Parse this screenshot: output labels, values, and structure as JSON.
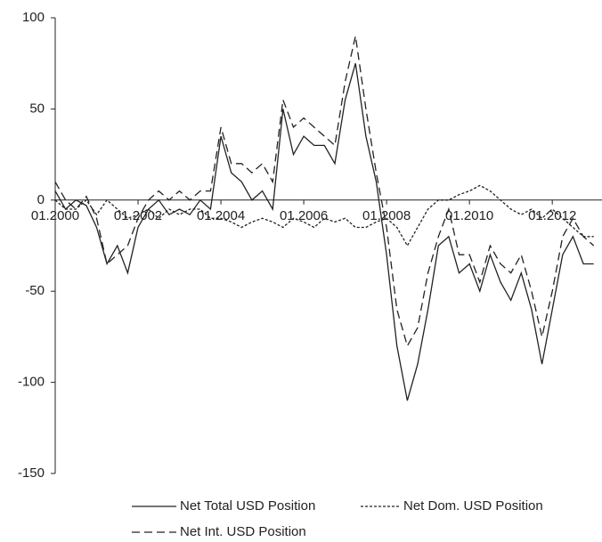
{
  "chart_data": {
    "type": "line",
    "x": [
      2000,
      2000.25,
      2000.5,
      2000.75,
      2001,
      2001.25,
      2001.5,
      2001.75,
      2002,
      2002.25,
      2002.5,
      2002.75,
      2003,
      2003.25,
      2003.5,
      2003.75,
      2004,
      2004.25,
      2004.5,
      2004.75,
      2005,
      2005.25,
      2005.5,
      2005.75,
      2006,
      2006.25,
      2006.5,
      2006.75,
      2007,
      2007.25,
      2007.5,
      2007.75,
      2008,
      2008.25,
      2008.5,
      2008.75,
      2009,
      2009.25,
      2009.5,
      2009.75,
      2010,
      2010.25,
      2010.5,
      2010.75,
      2011,
      2011.25,
      2011.5,
      2011.75,
      2012,
      2012.25,
      2012.5,
      2012.75,
      2013
    ],
    "series": [
      {
        "name": "Net Total USD Position",
        "color": "#222222",
        "dash": "none",
        "values": [
          5,
          -5,
          0,
          -3,
          -15,
          -35,
          -25,
          -40,
          -15,
          -5,
          0,
          -8,
          -5,
          -8,
          0,
          -5,
          35,
          15,
          10,
          0,
          5,
          -5,
          50,
          25,
          35,
          30,
          30,
          20,
          55,
          75,
          35,
          10,
          -30,
          -80,
          -110,
          -90,
          -60,
          -25,
          -20,
          -40,
          -35,
          -50,
          -30,
          -45,
          -55,
          -40,
          -60,
          -90,
          -60,
          -30,
          -20,
          -35,
          -35
        ]
      },
      {
        "name": "Net Dom. USD Position",
        "color": "#222222",
        "dash": "3,2",
        "values": [
          0,
          -5,
          -5,
          0,
          -8,
          0,
          -5,
          -10,
          -8,
          -5,
          -10,
          -5,
          -8,
          -5,
          -5,
          -10,
          -10,
          -12,
          -15,
          -12,
          -10,
          -12,
          -15,
          -10,
          -12,
          -15,
          -10,
          -12,
          -10,
          -15,
          -15,
          -12,
          -10,
          -15,
          -25,
          -15,
          -5,
          0,
          0,
          3,
          5,
          8,
          5,
          0,
          -5,
          -8,
          -5,
          -10,
          -5,
          -10,
          -15,
          -20,
          -20
        ]
      },
      {
        "name": "Net Int. USD Position",
        "color": "#222222",
        "dash": "9,5",
        "values": [
          10,
          0,
          -5,
          2,
          -10,
          -35,
          -30,
          -25,
          -10,
          0,
          5,
          0,
          5,
          0,
          5,
          5,
          40,
          20,
          20,
          15,
          20,
          10,
          55,
          40,
          45,
          40,
          35,
          30,
          65,
          90,
          50,
          15,
          -15,
          -60,
          -80,
          -70,
          -40,
          -20,
          -5,
          -30,
          -30,
          -45,
          -25,
          -35,
          -40,
          -30,
          -50,
          -75,
          -50,
          -20,
          -10,
          -20,
          -25
        ]
      }
    ],
    "xlim": [
      2000,
      2013.2
    ],
    "xticks": [
      {
        "value": 2000,
        "label": "01.2000"
      },
      {
        "value": 2002,
        "label": "01.2002"
      },
      {
        "value": 2004,
        "label": "01.2004"
      },
      {
        "value": 2006,
        "label": "01.2006"
      },
      {
        "value": 2008,
        "label": "01.2008"
      },
      {
        "value": 2010,
        "label": "01.2010"
      },
      {
        "value": 2012,
        "label": "01.2012"
      }
    ],
    "ylim": [
      -150,
      100
    ],
    "yticks": [
      -150,
      -100,
      -50,
      0,
      50,
      100
    ]
  }
}
